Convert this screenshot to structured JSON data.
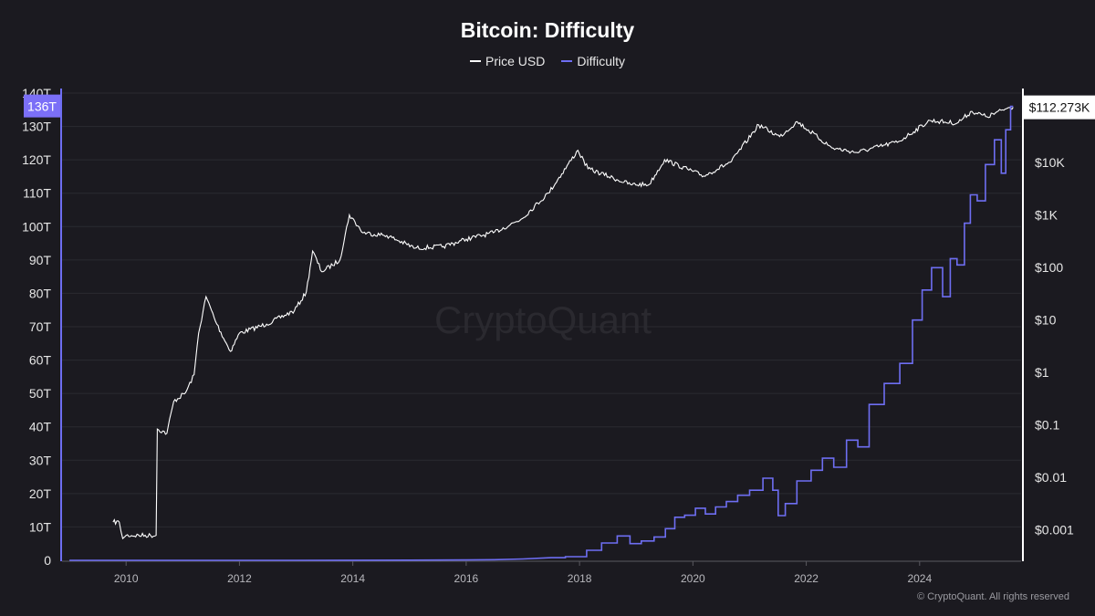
{
  "chart_data": {
    "type": "line",
    "title": "Bitcoin: Difficulty",
    "legend_position": "top-center",
    "grid": true,
    "x_axis": {
      "ticks": [
        "2010",
        "2012",
        "2014",
        "2016",
        "2018",
        "2020",
        "2022",
        "2024"
      ],
      "range": [
        2008.87,
        2025.79
      ]
    },
    "y_left": {
      "ticks": [
        "0",
        "10T",
        "20T",
        "30T",
        "40T",
        "50T",
        "60T",
        "70T",
        "80T",
        "90T",
        "100T",
        "110T",
        "120T",
        "130T",
        "140T"
      ],
      "range_T": [
        0,
        140
      ],
      "current_label": "136T"
    },
    "y_right": {
      "scale": "log",
      "ticks": [
        "$0.001",
        "$0.01",
        "$0.1",
        "$1",
        "$10",
        "$100",
        "$1K",
        "$10K"
      ],
      "current_label": "$112.273K"
    },
    "series": [
      {
        "name": "Price USD",
        "axis": "right",
        "color": "#ffffff",
        "points": [
          [
            2009.77,
            0.0014
          ],
          [
            2009.88,
            0.0014
          ],
          [
            2009.94,
            0.00068
          ],
          [
            2010.0,
            0.00078
          ],
          [
            2010.53,
            0.00078
          ],
          [
            2010.55,
            0.083
          ],
          [
            2010.72,
            0.069
          ],
          [
            2010.84,
            0.28
          ],
          [
            2011.05,
            0.41
          ],
          [
            2011.2,
            0.9
          ],
          [
            2011.28,
            5.6
          ],
          [
            2011.41,
            27.6
          ],
          [
            2011.6,
            8.3
          ],
          [
            2011.84,
            2.5
          ],
          [
            2012.0,
            5.6
          ],
          [
            2012.48,
            8.3
          ],
          [
            2012.97,
            15
          ],
          [
            2013.18,
            34
          ],
          [
            2013.29,
            205
          ],
          [
            2013.45,
            83
          ],
          [
            2013.77,
            137
          ],
          [
            2013.94,
            1000
          ],
          [
            2014.18,
            457
          ],
          [
            2014.6,
            405
          ],
          [
            2015.1,
            233
          ],
          [
            2015.6,
            250
          ],
          [
            2016.0,
            345
          ],
          [
            2016.48,
            457
          ],
          [
            2016.97,
            830
          ],
          [
            2017.45,
            2600
          ],
          [
            2017.97,
            17000
          ],
          [
            2018.15,
            7600
          ],
          [
            2018.9,
            3800
          ],
          [
            2019.23,
            3800
          ],
          [
            2019.5,
            11300
          ],
          [
            2020.19,
            5500
          ],
          [
            2020.68,
            10400
          ],
          [
            2021.16,
            52000
          ],
          [
            2021.53,
            31000
          ],
          [
            2021.84,
            60000
          ],
          [
            2022.45,
            19000
          ],
          [
            2022.89,
            15500
          ],
          [
            2023.63,
            25000
          ],
          [
            2024.18,
            63000
          ],
          [
            2024.66,
            56000
          ],
          [
            2024.92,
            94000
          ],
          [
            2025.19,
            74000
          ],
          [
            2025.56,
            110000
          ],
          [
            2025.65,
            112273
          ]
        ]
      },
      {
        "name": "Difficulty",
        "axis": "left",
        "color": "#6e6ef2",
        "unit": "T",
        "points": [
          [
            2009.0,
            0
          ],
          [
            2013.0,
            0.005
          ],
          [
            2014.0,
            0.03
          ],
          [
            2015.0,
            0.05
          ],
          [
            2016.0,
            0.1
          ],
          [
            2016.5,
            0.2
          ],
          [
            2017.0,
            0.4
          ],
          [
            2017.5,
            0.8
          ],
          [
            2018.0,
            1.1
          ],
          [
            2018.25,
            3
          ],
          [
            2018.53,
            5.2
          ],
          [
            2018.8,
            7.3
          ],
          [
            2018.98,
            5
          ],
          [
            2019.2,
            5.8
          ],
          [
            2019.43,
            7
          ],
          [
            2019.6,
            9.5
          ],
          [
            2019.76,
            12.9
          ],
          [
            2019.95,
            13.5
          ],
          [
            2020.14,
            15.6
          ],
          [
            2020.3,
            13.9
          ],
          [
            2020.5,
            16
          ],
          [
            2020.68,
            17.6
          ],
          [
            2020.9,
            19.5
          ],
          [
            2021.1,
            21
          ],
          [
            2021.37,
            24.6
          ],
          [
            2021.45,
            21
          ],
          [
            2021.56,
            13.4
          ],
          [
            2021.7,
            17
          ],
          [
            2021.97,
            23.8
          ],
          [
            2022.2,
            27
          ],
          [
            2022.37,
            30.6
          ],
          [
            2022.6,
            27.9
          ],
          [
            2022.82,
            36
          ],
          [
            2023.0,
            34
          ],
          [
            2023.22,
            46.7
          ],
          [
            2023.53,
            53
          ],
          [
            2023.77,
            59
          ],
          [
            2023.98,
            72
          ],
          [
            2024.11,
            81
          ],
          [
            2024.31,
            87.7
          ],
          [
            2024.5,
            79
          ],
          [
            2024.58,
            90.4
          ],
          [
            2024.74,
            88.5
          ],
          [
            2024.84,
            101
          ],
          [
            2024.95,
            109.5
          ],
          [
            2025.08,
            107.7
          ],
          [
            2025.24,
            118.6
          ],
          [
            2025.4,
            126
          ],
          [
            2025.48,
            116
          ],
          [
            2025.56,
            129
          ],
          [
            2025.65,
            136
          ]
        ]
      }
    ]
  },
  "watermark": "CryptoQuant",
  "copyright": "© CryptoQuant. All rights reserved"
}
